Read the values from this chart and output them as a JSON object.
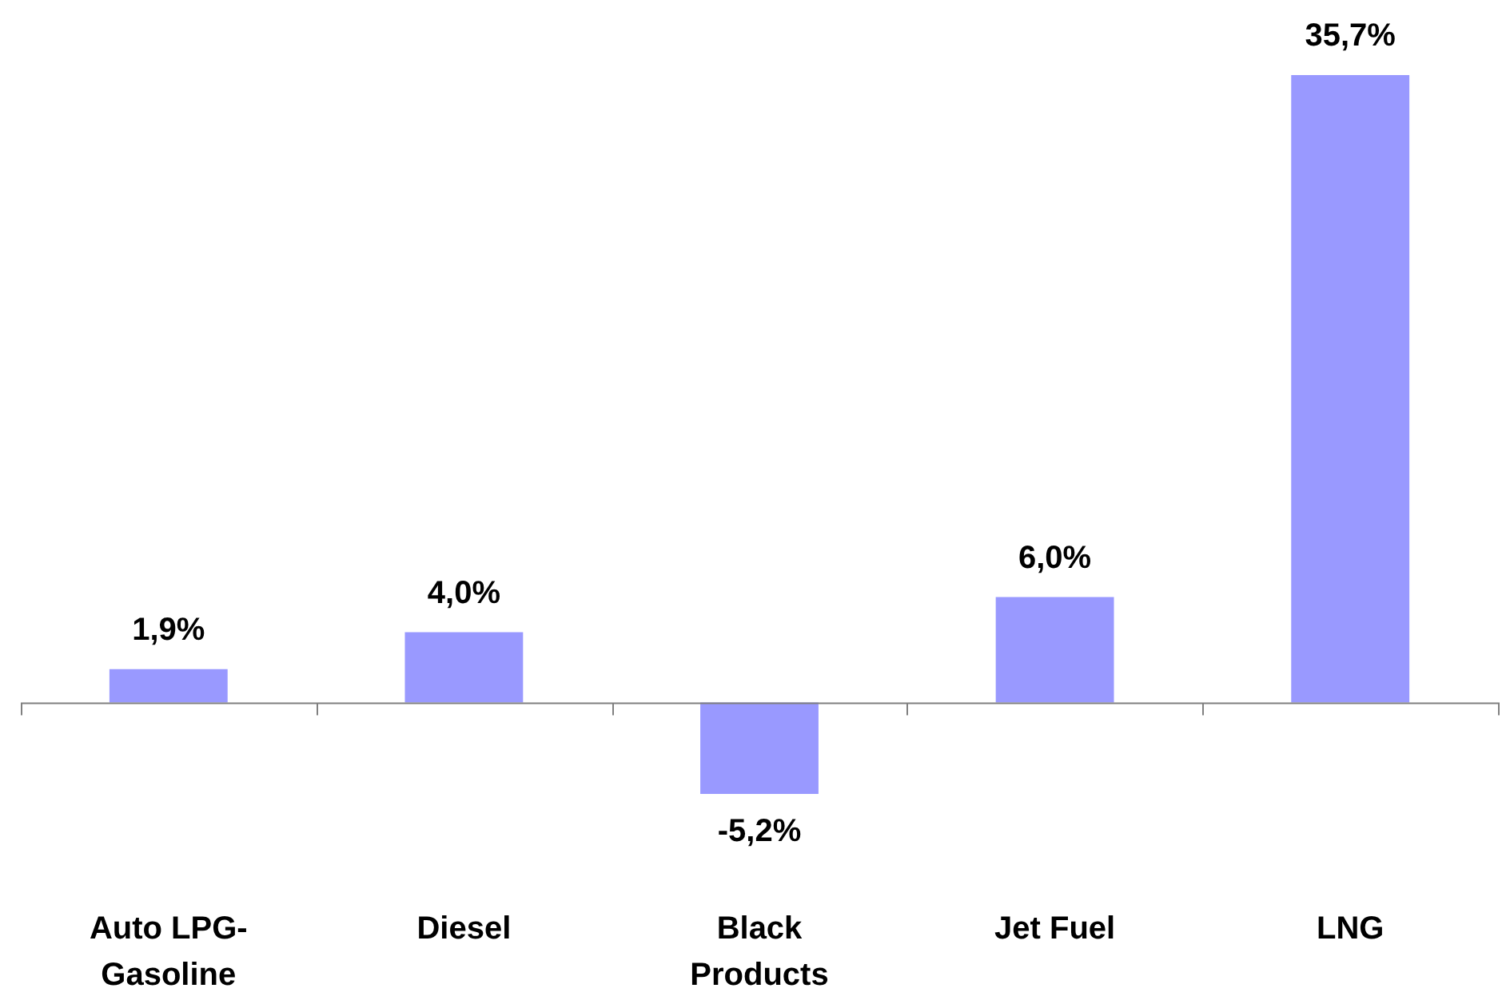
{
  "chart_data": {
    "type": "bar",
    "categories": [
      "Auto LPG-\nGasoline",
      "Diesel",
      "Black\nProducts",
      "Jet Fuel",
      "LNG"
    ],
    "values": [
      1.9,
      4.0,
      -5.2,
      6.0,
      35.7
    ],
    "color": "#9999ff",
    "value_labels": [
      "1,9%",
      "4,0%",
      "-5,2%",
      "6,0%",
      "35,7%"
    ]
  }
}
